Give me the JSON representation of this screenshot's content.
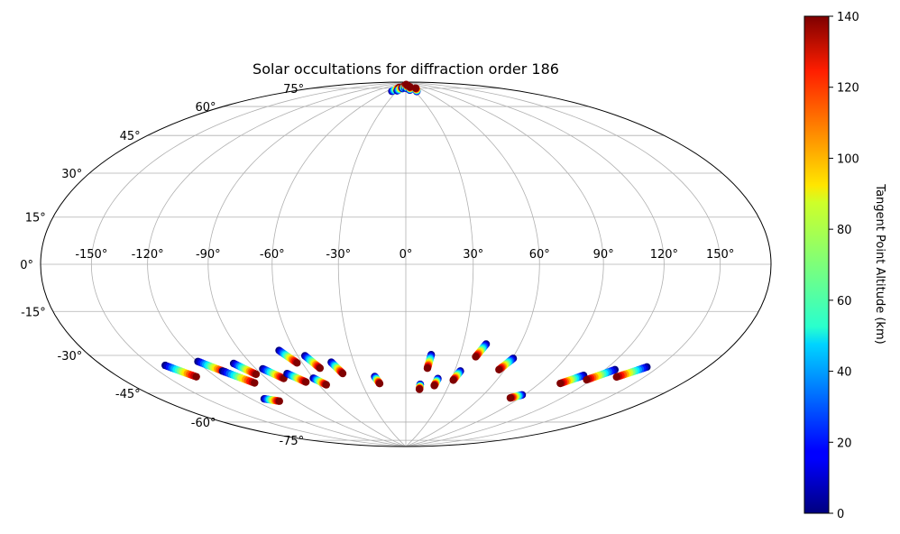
{
  "chart_data": {
    "type": "scatter",
    "projection": "hammer",
    "title": "Solar occultations for diffraction order 186",
    "grid": true,
    "longitude_ticks": [
      "-150°",
      "-120°",
      "-90°",
      "-60°",
      "-30°",
      "0°",
      "30°",
      "60°",
      "90°",
      "120°",
      "150°"
    ],
    "latitude_ticks": [
      "75°",
      "60°",
      "45°",
      "30°",
      "15°",
      "0°",
      "-15°",
      "-30°",
      "-45°",
      "-60°",
      "-75°"
    ],
    "longitude_range": [
      -180,
      180
    ],
    "latitude_range": [
      -90,
      90
    ],
    "colorbar": {
      "label": "Tangent Point Altitude (km)",
      "range": [
        0,
        140
      ],
      "ticks": [
        "0",
        "20",
        "40",
        "60",
        "80",
        "100",
        "120",
        "140"
      ],
      "colormap": "jet",
      "placement": "right"
    },
    "occultations": [
      {
        "lon_start": -141.5,
        "lat_start": -38.5,
        "lon_end": -132.0,
        "lat_end": -44.5
      },
      {
        "lon_start": -119.5,
        "lat_start": -39.0,
        "lon_end": -110.5,
        "lat_end": -44.5
      },
      {
        "lon_start": -111.5,
        "lat_start": -44.0,
        "lon_end": -101.0,
        "lat_end": -50.5
      },
      {
        "lon_start": -100.0,
        "lat_start": -41.5,
        "lon_end": -93.5,
        "lat_end": -47.0
      },
      {
        "lon_start": -111.0,
        "lat_start": -57.5,
        "lon_end": -103.0,
        "lat_end": -59.5
      },
      {
        "lon_start": -86.0,
        "lat_start": -45.0,
        "lon_end": -79.0,
        "lat_end": -50.0
      },
      {
        "lon_start": -74.0,
        "lat_start": -48.0,
        "lon_end": -67.0,
        "lat_end": -52.5
      },
      {
        "lon_start": -68.5,
        "lat_start": -37.5,
        "lon_end": -63.0,
        "lat_end": -43.5
      },
      {
        "lon_start": -60.0,
        "lat_start": -51.0,
        "lon_end": -55.0,
        "lat_end": -54.5
      },
      {
        "lon_start": -56.0,
        "lat_start": -40.5,
        "lon_end": -51.5,
        "lat_end": -46.5
      },
      {
        "lon_start": -43.0,
        "lat_start": -44.0,
        "lon_end": -39.5,
        "lat_end": -49.5
      },
      {
        "lon_start": -20.0,
        "lat_start": -51.5,
        "lon_end": -18.0,
        "lat_end": -55.0
      },
      {
        "lon_start": 10.0,
        "lat_start": -55.5,
        "lon_end": 10.0,
        "lat_end": -58.0
      },
      {
        "lon_start": 14.0,
        "lat_start": -41.0,
        "lon_end": 13.0,
        "lat_end": -47.5
      },
      {
        "lon_start": 21.0,
        "lat_start": -52.5,
        "lon_end": 20.0,
        "lat_end": -56.0
      },
      {
        "lon_start": 33.5,
        "lat_start": -48.5,
        "lon_end": 31.5,
        "lat_end": -53.0
      },
      {
        "lon_start": 42.0,
        "lat_start": -35.5,
        "lon_end": 39.0,
        "lat_end": -41.5
      },
      {
        "lon_start": 60.5,
        "lat_start": -41.5,
        "lon_end": 56.5,
        "lat_end": -47.0
      },
      {
        "lon_start": 88.5,
        "lat_start": -57.5,
        "lon_end": 83.0,
        "lat_end": -59.5
      },
      {
        "lon_start": 111.5,
        "lat_start": -46.0,
        "lon_end": 103.5,
        "lat_end": -50.5
      },
      {
        "lon_start": 126.0,
        "lat_start": -42.0,
        "lon_end": 117.0,
        "lat_end": -47.5
      },
      {
        "lon_start": 143.0,
        "lat_start": -39.0,
        "lon_end": 133.0,
        "lat_end": -44.5
      },
      {
        "lon_start": -45.0,
        "lat_start": 84.0,
        "lon_end": -35.0,
        "lat_end": 86.5
      },
      {
        "lon_start": -30.0,
        "lat_start": 84.5,
        "lon_end": -20.0,
        "lat_end": 87.0
      },
      {
        "lon_start": -15.0,
        "lat_start": 86.0,
        "lon_end": -6.0,
        "lat_end": 88.0
      },
      {
        "lon_start": -5.0,
        "lat_start": 86.5,
        "lon_end": 4.0,
        "lat_end": 88.5
      },
      {
        "lon_start": 5.0,
        "lat_start": 86.0,
        "lon_end": 14.0,
        "lat_end": 88.0
      },
      {
        "lon_start": 15.0,
        "lat_start": 85.0,
        "lon_end": 25.0,
        "lat_end": 87.0
      },
      {
        "lon_start": 35.0,
        "lat_start": 84.0,
        "lon_end": 47.0,
        "lat_end": 86.0
      }
    ]
  }
}
